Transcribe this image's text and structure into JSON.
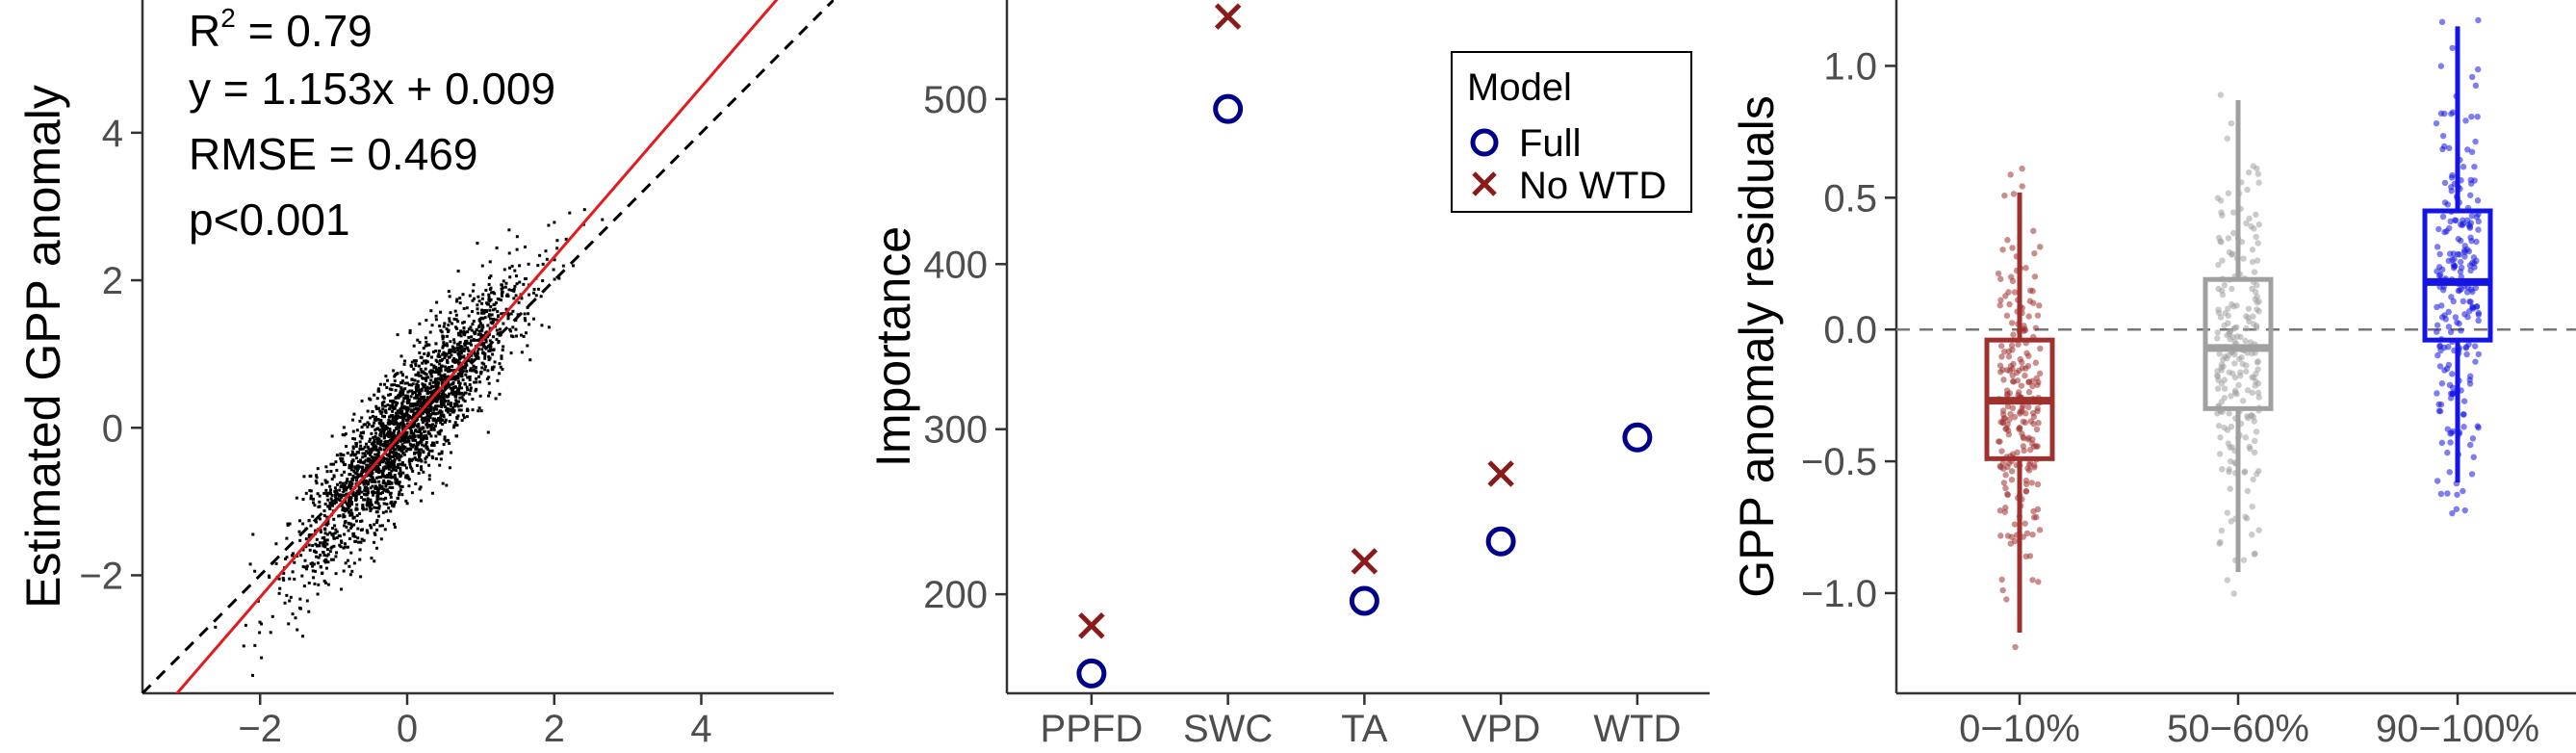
{
  "chart_data": [
    {
      "type": "scatter",
      "ylabel": "Estimated GPP anomaly",
      "xlabel": "",
      "xlim": [
        -3.6,
        5.8
      ],
      "ylim": [
        -3.6,
        5.8
      ],
      "x_ticks": [
        "−2",
        "0",
        "2",
        "4"
      ],
      "y_ticks": [
        "−2",
        "0",
        "2",
        "4"
      ],
      "annotations": {
        "r2_prefix": "R",
        "r2_sup": "2",
        "r2_value": " = 0.79",
        "equation": "y = 1.153x + 0.009",
        "rmse": "RMSE = 0.469",
        "pvalue": "p<0.001"
      },
      "regression": {
        "slope": 1.153,
        "intercept": 0.009,
        "color": "#e41a1c"
      },
      "identity_line": {
        "slope": 1,
        "intercept": 0,
        "style": "dashed",
        "color": "#000000"
      },
      "point_cloud": {
        "n_points": 2600,
        "center": [
          0,
          0
        ],
        "color": "#000000"
      },
      "grid": false
    },
    {
      "type": "scatter",
      "ylabel": "Importance",
      "xlabel": "",
      "categories": [
        "PPFD",
        "SWC",
        "TA",
        "VPD",
        "WTD"
      ],
      "ylim": [
        140,
        560
      ],
      "y_ticks": [
        200,
        300,
        400,
        500
      ],
      "series": [
        {
          "name": "Full",
          "marker": "circle",
          "color": "#00008b",
          "values": [
            152,
            494,
            196,
            232,
            295
          ]
        },
        {
          "name": "No WTD",
          "marker": "x",
          "color": "#8b1a1a",
          "values": [
            181,
            550,
            220,
            273,
            null
          ]
        }
      ],
      "legend": {
        "title": "Model",
        "position": "top-right"
      },
      "grid": false
    },
    {
      "type": "box",
      "ylabel": "GPP anomaly residuals",
      "xlabel": "",
      "categories": [
        "0−10%",
        "50−60%",
        "90−100%"
      ],
      "ylim": [
        -1.38,
        1.25
      ],
      "y_ticks": [
        "−1.0",
        "−0.5",
        "0.0",
        "0.5",
        "1.0"
      ],
      "y_tick_values": [
        -1.0,
        -0.5,
        0.0,
        0.5,
        1.0
      ],
      "boxes": [
        {
          "category": "0−10%",
          "color": "#a0302e",
          "min": -1.15,
          "q1": -0.49,
          "median": -0.27,
          "q3": -0.04,
          "max": 0.52
        },
        {
          "category": "50−60%",
          "color": "#a0a0a0",
          "min": -0.92,
          "q1": -0.3,
          "median": -0.07,
          "q3": 0.19,
          "max": 0.87
        },
        {
          "category": "90−100%",
          "color": "#1414e6",
          "min": -0.58,
          "q1": -0.04,
          "median": 0.18,
          "q3": 0.45,
          "max": 1.15
        }
      ],
      "reference_line": {
        "y": 0.0,
        "style": "dashed",
        "color": "#777777"
      },
      "grid": false
    }
  ]
}
